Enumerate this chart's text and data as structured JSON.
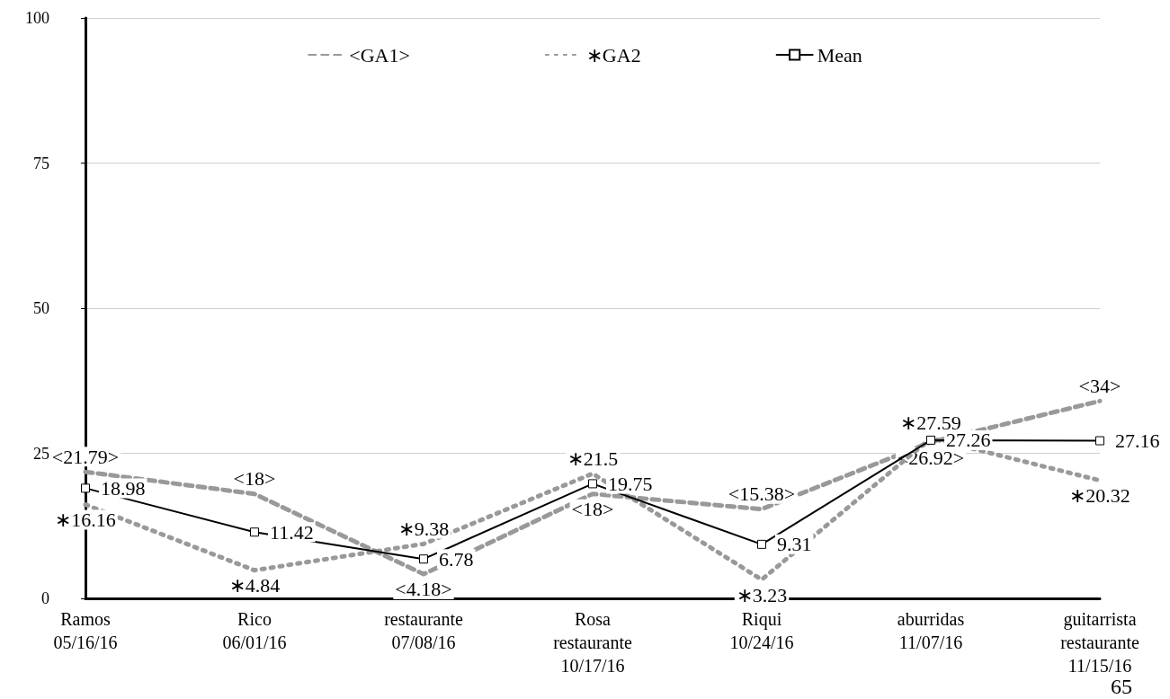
{
  "chart_data": {
    "type": "line",
    "categories": [
      "Ramos\n05/16/16",
      "Rico\n06/01/16",
      "restaurante\n07/08/16",
      "Rosa\nrestaurante\n10/17/16",
      "Riqui\n10/24/16",
      "aburridas\n11/07/16",
      "guitarrista\nrestaurante\n11/15/16"
    ],
    "series": [
      {
        "name": "<GA1>",
        "color": "#999999",
        "line_style": "dashed",
        "marker": "none",
        "values": [
          21.79,
          18,
          4.18,
          18,
          15.38,
          26.92,
          34
        ],
        "value_labels": [
          "<21.79>",
          "<18>",
          "<4.18>",
          "<18>",
          "<15.38>",
          "<26.92>",
          "<34>"
        ]
      },
      {
        "name": "∗GA2",
        "color": "#999999",
        "line_style": "dotted",
        "marker": "none",
        "values": [
          16.16,
          4.84,
          9.38,
          21.5,
          3.23,
          27.59,
          20.32
        ],
        "value_labels": [
          "∗16.16",
          "∗4.84",
          "∗9.38",
          "∗21.5",
          "∗3.23",
          "∗27.59",
          "∗20.32"
        ]
      },
      {
        "name": "Mean",
        "color": "#000000",
        "line_style": "solid",
        "marker": "square",
        "values": [
          18.98,
          11.42,
          6.78,
          19.75,
          9.31,
          27.26,
          27.16
        ],
        "value_labels": [
          "18.98",
          "11.42",
          "6.78",
          "19.75",
          "9.31",
          "27.26",
          "27.16"
        ]
      }
    ],
    "ylim": [
      0,
      100
    ],
    "yticks": [
      0,
      25,
      50,
      75,
      100
    ],
    "grid": "y",
    "legend": "top",
    "annotations": [
      "65"
    ]
  }
}
